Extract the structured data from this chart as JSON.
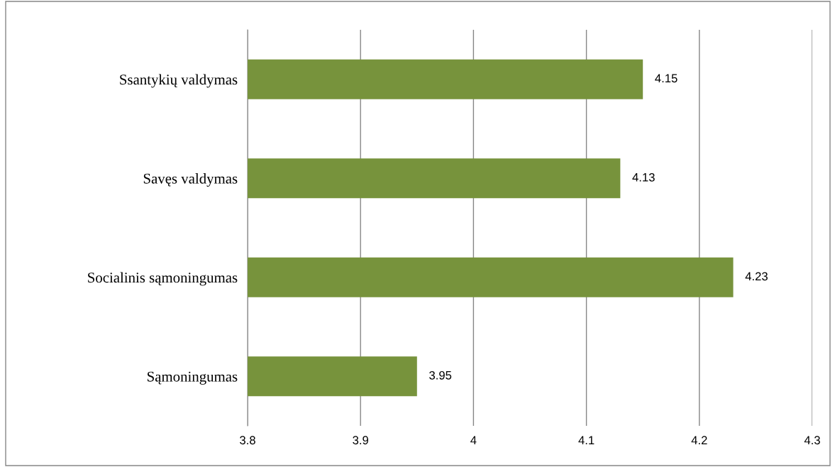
{
  "chart_data": {
    "type": "bar",
    "orientation": "horizontal",
    "categories": [
      "Ssantykių valdymas",
      "Savęs valdymas",
      "Socialinis sąmoningumas",
      "Sąmoningumas"
    ],
    "values": [
      4.15,
      4.13,
      4.23,
      3.95
    ],
    "color": "#77933c",
    "xlim": [
      3.8,
      4.3
    ],
    "xticks": [
      3.8,
      3.9,
      4,
      4.1,
      4.2,
      4.3
    ],
    "grid": "x",
    "data_labels": true,
    "legend": false
  }
}
